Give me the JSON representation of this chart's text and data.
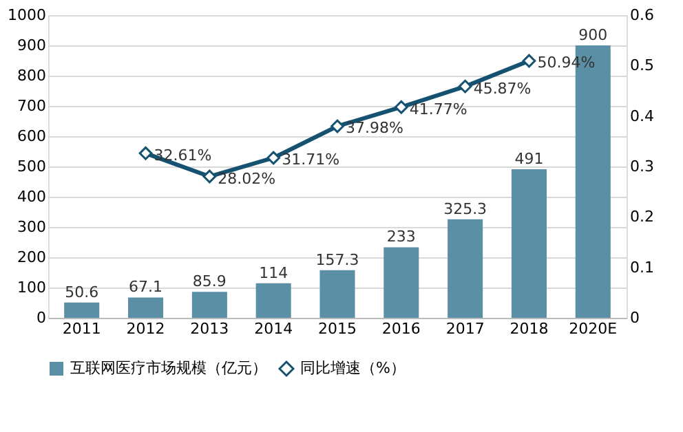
{
  "chart_data": {
    "type": "bar",
    "categories": [
      "2011",
      "2012",
      "2013",
      "2014",
      "2015",
      "2016",
      "2017",
      "2018",
      "2020E"
    ],
    "series": [
      {
        "name": "互联网医疗市场规模（亿元）",
        "color": "#5b8fa6",
        "values": [
          50.6,
          67.1,
          85.9,
          114,
          157.3,
          233,
          325.3,
          491,
          900
        ]
      },
      {
        "name": "同比增速（%）",
        "type": "line",
        "axis": "y2",
        "color": "#155170",
        "marker": "diamond",
        "values": [
          null,
          0.3261,
          0.2802,
          0.3171,
          0.3798,
          0.4177,
          0.4587,
          0.5094,
          null
        ],
        "value_labels": [
          null,
          "32.61%",
          "28.02%",
          "31.71%",
          "37.98%",
          "41.77%",
          "45.87%",
          "50.94%",
          null
        ]
      }
    ],
    "data_labels": true,
    "ylim": [
      0,
      1000
    ],
    "yticks": [
      0,
      100,
      200,
      300,
      400,
      500,
      600,
      700,
      800,
      900,
      1000
    ],
    "y2lim": [
      0,
      0.6
    ],
    "y2ticks": [
      0,
      0.1,
      0.2,
      0.3,
      0.4,
      0.5,
      0.6
    ],
    "grid": "y",
    "legend": "bottom"
  }
}
